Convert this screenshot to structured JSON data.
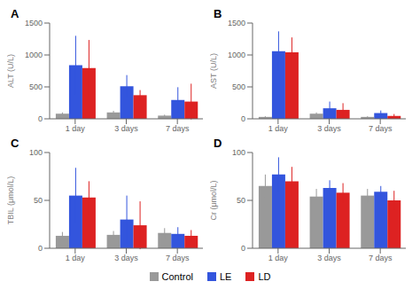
{
  "chart_data": [
    {
      "type": "bar",
      "title": "A",
      "ylabel": "ALT (U/L)",
      "categories": [
        "1 day",
        "3 days",
        "7 days"
      ],
      "series": [
        {
          "name": "Control",
          "color": "#999999",
          "values": [
            80,
            100,
            50
          ],
          "errors": [
            20,
            25,
            15
          ]
        },
        {
          "name": "LE",
          "color": "#3355dd",
          "values": [
            840,
            510,
            295
          ],
          "errors": [
            460,
            175,
            200
          ]
        },
        {
          "name": "LD",
          "color": "#dd2222",
          "values": [
            795,
            370,
            270
          ],
          "errors": [
            440,
            80,
            280
          ]
        }
      ],
      "ylim": [
        0,
        1500
      ],
      "yticks": [
        0,
        500,
        1000,
        1500
      ],
      "grid": false,
      "legend": "bottom"
    },
    {
      "type": "bar",
      "title": "B",
      "ylabel": "AST (U/L)",
      "categories": [
        "1 day",
        "3 days",
        "7 days"
      ],
      "series": [
        {
          "name": "Control",
          "color": "#999999",
          "values": [
            30,
            80,
            30
          ],
          "errors": [
            10,
            20,
            10
          ]
        },
        {
          "name": "LE",
          "color": "#3355dd",
          "values": [
            1060,
            165,
            90
          ],
          "errors": [
            310,
            105,
            40
          ]
        },
        {
          "name": "LD",
          "color": "#dd2222",
          "values": [
            1040,
            140,
            45
          ],
          "errors": [
            235,
            105,
            30
          ]
        }
      ],
      "ylim": [
        0,
        1500
      ],
      "yticks": [
        0,
        500,
        1000,
        1500
      ],
      "grid": false,
      "legend": "bottom"
    },
    {
      "type": "bar",
      "title": "C",
      "ylabel": "TBIL (μmol/L)",
      "categories": [
        "1 day",
        "3 days",
        "7 days"
      ],
      "series": [
        {
          "name": "Control",
          "color": "#999999",
          "values": [
            13,
            14,
            16
          ],
          "errors": [
            4,
            4,
            5
          ]
        },
        {
          "name": "LE",
          "color": "#3355dd",
          "values": [
            55,
            30,
            15
          ],
          "errors": [
            29,
            25,
            7
          ]
        },
        {
          "name": "LD",
          "color": "#dd2222",
          "values": [
            53,
            24,
            13
          ],
          "errors": [
            17,
            25,
            6
          ]
        }
      ],
      "ylim": [
        0,
        100
      ],
      "yticks": [
        0,
        50,
        100
      ],
      "grid": false,
      "legend": "bottom"
    },
    {
      "type": "bar",
      "title": "D",
      "ylabel": "Cr (μmol/L)",
      "categories": [
        "1 day",
        "3 days",
        "7 days"
      ],
      "series": [
        {
          "name": "Control",
          "color": "#999999",
          "values": [
            65,
            54,
            55
          ],
          "errors": [
            12,
            8,
            7
          ]
        },
        {
          "name": "LE",
          "color": "#3355dd",
          "values": [
            77,
            63,
            59
          ],
          "errors": [
            18,
            8,
            6
          ]
        },
        {
          "name": "LD",
          "color": "#dd2222",
          "values": [
            70,
            58,
            50
          ],
          "errors": [
            15,
            10,
            10
          ]
        }
      ],
      "ylim": [
        0,
        100
      ],
      "yticks": [
        0,
        50,
        100
      ],
      "grid": false,
      "legend": "bottom"
    }
  ]
}
